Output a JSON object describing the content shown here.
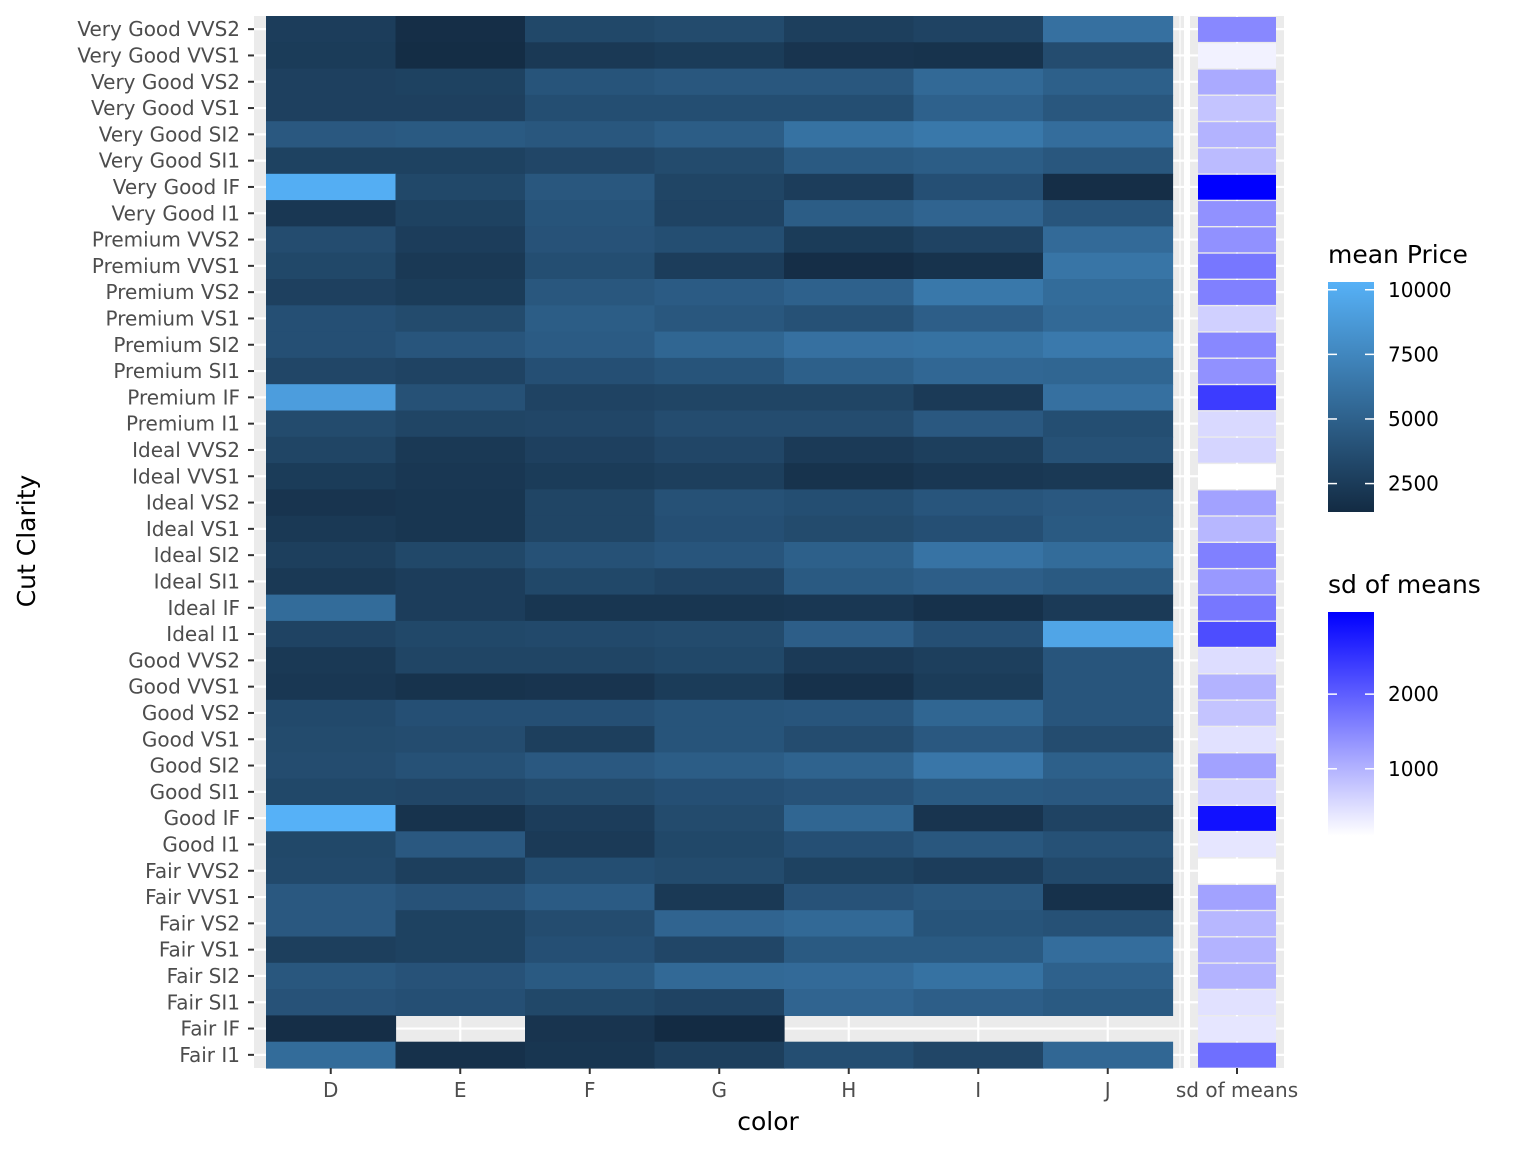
{
  "chart_data": {
    "type": "heatmap",
    "xlabel": "color",
    "ylabel": "Cut Clarity",
    "x_categories": [
      "D",
      "E",
      "F",
      "G",
      "H",
      "I",
      "J"
    ],
    "extra_column_label": "sd of means",
    "y_categories": [
      "Very Good VVS2",
      "Very Good VVS1",
      "Very Good VS2",
      "Very Good VS1",
      "Very Good SI2",
      "Very Good SI1",
      "Very Good IF",
      "Very Good I1",
      "Premium VVS2",
      "Premium VVS1",
      "Premium VS2",
      "Premium VS1",
      "Premium SI2",
      "Premium SI1",
      "Premium IF",
      "Premium I1",
      "Ideal VVS2",
      "Ideal VVS1",
      "Ideal VS2",
      "Ideal VS1",
      "Ideal SI2",
      "Ideal SI1",
      "Ideal IF",
      "Ideal I1",
      "Good VVS2",
      "Good VVS1",
      "Good VS2",
      "Good VS1",
      "Good SI2",
      "Good SI1",
      "Good IF",
      "Good I1",
      "Fair VVS2",
      "Fair VVS1",
      "Fair VS2",
      "Fair VS1",
      "Fair SI2",
      "Fair SI1",
      "Fair IF",
      "Fair I1"
    ],
    "values": [
      [
        2600,
        1600,
        3300,
        3500,
        2700,
        3000,
        6000
      ],
      [
        2500,
        1500,
        2300,
        2500,
        2000,
        1900,
        3600
      ],
      [
        2800,
        2900,
        4100,
        4300,
        4300,
        5500,
        4900
      ],
      [
        2800,
        2800,
        3700,
        3700,
        3700,
        5000,
        4300
      ],
      [
        4400,
        4500,
        4300,
        4700,
        6100,
        6500,
        5800
      ],
      [
        2900,
        2900,
        3200,
        3500,
        4500,
        4700,
        4300
      ],
      [
        10100,
        3300,
        4300,
        3100,
        2600,
        3800,
        1600
      ],
      [
        2200,
        2900,
        4100,
        3000,
        4700,
        5200,
        4200
      ],
      [
        3600,
        2600,
        4000,
        3700,
        2500,
        3000,
        5600
      ],
      [
        3300,
        2300,
        3700,
        2600,
        1600,
        1900,
        6300
      ],
      [
        2800,
        2500,
        4300,
        4600,
        5000,
        6500,
        5700
      ],
      [
        3800,
        3500,
        4700,
        4300,
        3900,
        4800,
        5500
      ],
      [
        3800,
        4200,
        4600,
        5300,
        6000,
        6100,
        6600
      ],
      [
        3200,
        3000,
        3800,
        4100,
        4900,
        5400,
        5300
      ],
      [
        9000,
        3900,
        3000,
        3100,
        3100,
        2400,
        6000
      ],
      [
        3500,
        3100,
        3200,
        3600,
        3600,
        4400,
        3700
      ],
      [
        3100,
        2300,
        2800,
        3200,
        2400,
        2700,
        3900
      ],
      [
        2500,
        2200,
        2500,
        2700,
        1900,
        2200,
        2300
      ],
      [
        2000,
        2100,
        3100,
        3900,
        3700,
        4200,
        4400
      ],
      [
        2300,
        2100,
        3100,
        3800,
        3500,
        3800,
        4500
      ],
      [
        2700,
        3300,
        3900,
        4200,
        4900,
        6200,
        5700
      ],
      [
        2300,
        2600,
        3300,
        3000,
        4500,
        4800,
        4500
      ],
      [
        5700,
        2600,
        2100,
        2100,
        2200,
        1800,
        2400
      ],
      [
        3000,
        3300,
        3400,
        3500,
        4800,
        3800,
        9500
      ],
      [
        2300,
        3100,
        3100,
        3300,
        2400,
        2700,
        4200
      ],
      [
        2200,
        1900,
        2000,
        2500,
        1800,
        2500,
        4200
      ],
      [
        3400,
        3800,
        3800,
        4100,
        4200,
        5300,
        4200
      ],
      [
        3500,
        3600,
        2700,
        4100,
        3600,
        4400,
        3600
      ],
      [
        3600,
        3900,
        4400,
        4700,
        5100,
        6400,
        4900
      ],
      [
        3300,
        3200,
        3500,
        3800,
        4000,
        4500,
        4400
      ],
      [
        10300,
        1900,
        2600,
        3500,
        5300,
        2000,
        3000
      ],
      [
        3300,
        4400,
        2400,
        3300,
        3800,
        4300,
        3900
      ],
      [
        3400,
        2700,
        3700,
        3500,
        2900,
        2600,
        3400
      ],
      [
        4400,
        4000,
        4600,
        2300,
        4000,
        4300,
        1800
      ],
      [
        4400,
        2900,
        3600,
        5200,
        5500,
        4100,
        3900
      ],
      [
        2700,
        2900,
        3800,
        3200,
        4500,
        4500,
        5800
      ],
      [
        4300,
        4000,
        4500,
        5500,
        5600,
        6100,
        5000
      ],
      [
        4000,
        3800,
        3300,
        3000,
        5200,
        4800,
        4500
      ],
      [
        1600,
        null,
        2000,
        1400,
        null,
        null,
        null
      ],
      [
        5700,
        1800,
        2100,
        2700,
        3700,
        3200,
        5400
      ]
    ],
    "sd_of_means": [
      1500,
      250,
      1100,
      800,
      1000,
      900,
      3100,
      1400,
      1400,
      1700,
      1600,
      650,
      1500,
      1400,
      2400,
      550,
      600,
      100,
      1200,
      950,
      1600,
      1300,
      1700,
      2200,
      500,
      1000,
      800,
      450,
      1200,
      600,
      2900,
      400,
      100,
      1200,
      950,
      1000,
      1000,
      450,
      400,
      1800
    ],
    "legends": [
      {
        "title": "mean Price",
        "ticks": [
          "10000",
          "7500",
          "5000",
          "2500"
        ],
        "tick_values": [
          10000,
          7500,
          5000,
          2500
        ],
        "range": [
          1400,
          10300
        ],
        "low_color": "#132B43",
        "high_color": "#56B1F7"
      },
      {
        "title": "sd of means",
        "ticks": [
          "2000",
          "1000"
        ],
        "tick_values": [
          2000,
          1000
        ],
        "range": [
          100,
          3100
        ],
        "low_color": "#FFFFFF",
        "high_color": "#0000FF"
      }
    ],
    "legend_position": "right",
    "grid": true,
    "na_color": "#EBEBEB"
  }
}
